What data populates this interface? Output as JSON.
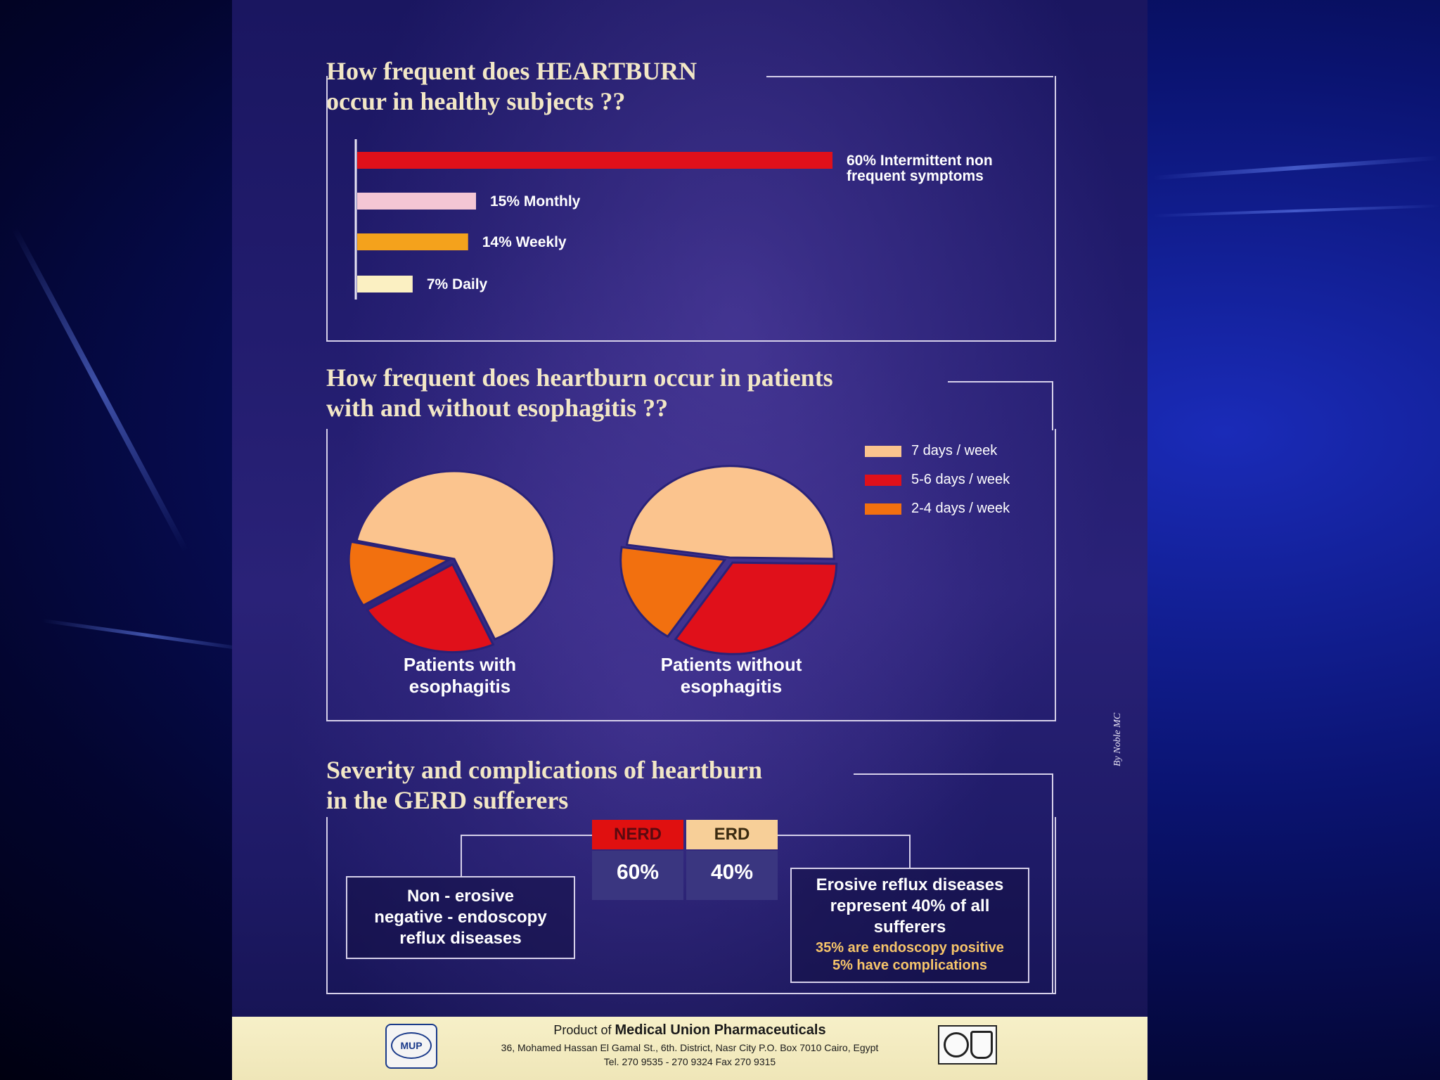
{
  "section1": {
    "title_line1": "How frequent does HEARTBURN",
    "title_line2": "occur in healthy subjects ??"
  },
  "section2": {
    "title_line1": "How frequent does heartburn occur in patients",
    "title_line2": "with and without esophagitis ??"
  },
  "section3": {
    "title_line1": "Severity and complications of heartburn",
    "title_line2": "in the GERD sufferers",
    "left_box_lines": [
      "Non - erosive",
      "negative - endoscopy",
      "reflux diseases"
    ],
    "right_box_lines": [
      "Erosive reflux diseases",
      "represent 40% of all",
      "sufferers"
    ],
    "right_box_sub_lines": [
      "35% are endoscopy positive",
      "5% have complications"
    ]
  },
  "side_credit": "By Noble MC",
  "footer": {
    "logo_text": "MUP",
    "line1_prefix": "Product of",
    "line1_company": "Medical Union Pharmaceuticals",
    "line2": "36, Mohamed Hassan El Gamal St., 6th. District, Nasr City  P.O. Box 7010 Cairo, Egypt",
    "line3": "Tel. 270 9535 - 270 9324  Fax 270 9315"
  },
  "colors": {
    "red": "#e0101a",
    "pink": "#f4c6d4",
    "amber": "#f4a21c",
    "cream": "#fbf0c2",
    "peach": "#fbc48e",
    "orange": "#f2700f",
    "nerd_header": "#e01010",
    "erd_header": "#f7cf98"
  },
  "chart_data": [
    {
      "type": "bar",
      "orientation": "horizontal",
      "categories": [
        "Intermittent non frequent symptoms",
        "Monthly",
        "Weekly",
        "Daily"
      ],
      "values": [
        60,
        15,
        14,
        7
      ],
      "labels": [
        "60% Intermittent non frequent symptoms",
        "15% Monthly",
        "14% Weekly",
        "7% Daily"
      ],
      "label_lines": [
        [
          "60% Intermittent non",
          "frequent symptoms"
        ],
        [
          "15% Monthly"
        ],
        [
          "14% Weekly"
        ],
        [
          "7% Daily"
        ]
      ],
      "colors": [
        "#e0101a",
        "#f4c6d4",
        "#f4a21c",
        "#fbf0c2"
      ],
      "xlim": [
        0,
        60
      ],
      "grid": false
    },
    {
      "type": "pie",
      "legend": [
        "7 days / week",
        "5-6 days / week",
        "2-4 days / week"
      ],
      "legend_placement": "top-right",
      "colors": [
        "#fbc48e",
        "#e0101a",
        "#f2700f"
      ],
      "pies": [
        {
          "label_lines": [
            "Patients with",
            "esophagitis"
          ],
          "values": [
            65,
            23,
            12
          ]
        },
        {
          "label_lines": [
            "Patients without",
            "esophagitis"
          ],
          "values": [
            48,
            34,
            18
          ]
        }
      ]
    },
    {
      "type": "table",
      "headers": [
        "NERD",
        "ERD"
      ],
      "values": [
        "60%",
        "40%"
      ]
    }
  ]
}
